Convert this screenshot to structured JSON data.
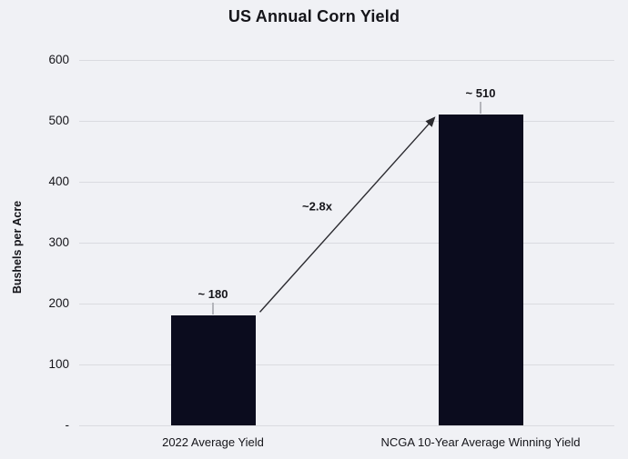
{
  "chart_data": {
    "type": "bar",
    "title": "US Annual Corn Yield",
    "categories": [
      "2022 Average Yield",
      "NCGA 10-Year Average Winning Yield"
    ],
    "values": [
      180,
      510
    ],
    "bar_labels": [
      "~ 180",
      "~ 510"
    ],
    "xlabel": "",
    "ylabel": "Bushels per Acre",
    "ylim": [
      0,
      600
    ],
    "yticks": [
      {
        "value": 600,
        "label": "600"
      },
      {
        "value": 500,
        "label": "500"
      },
      {
        "value": 400,
        "label": "400"
      },
      {
        "value": 300,
        "label": "300"
      },
      {
        "value": 200,
        "label": "200"
      },
      {
        "value": 100,
        "label": "100"
      },
      {
        "value": 0,
        "label": "-"
      }
    ],
    "grid": "horizontal",
    "legend": "none",
    "annotation": {
      "type": "arrow",
      "text": "~2.8x",
      "from_category": "2022 Average Yield",
      "to_category": "NCGA 10-Year Average Winning Yield"
    },
    "colors": {
      "background": "#f0f1f5",
      "bar": "#0b0c1e",
      "gridline": "#dadbe0",
      "text": "#15151a",
      "arrow": "#2b2b30",
      "connector": "#b4b5bb"
    }
  }
}
